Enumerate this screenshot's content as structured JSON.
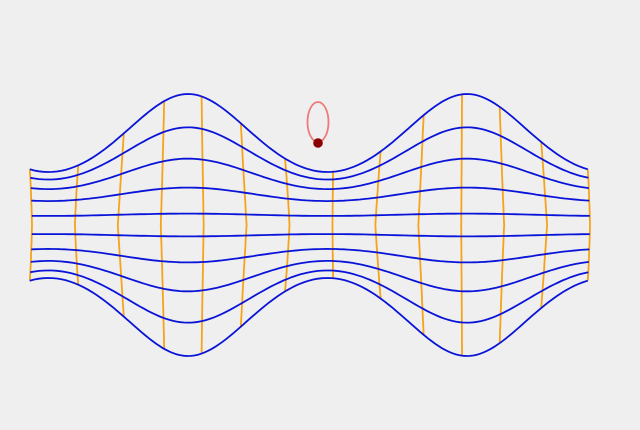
{
  "figure": {
    "background": "#efefef",
    "warped_grid": {
      "horizontal_line_color": "#0a14d8",
      "vertical_line_color": "#f5a31a",
      "horizontal_line_count": 10,
      "vertical_line_count": 14,
      "wave_crests": 2
    },
    "particle_marker": {
      "color": "#8b0000",
      "label_icon": "particle-dot-icon"
    },
    "orbit_loop": {
      "color": "#ee7a7a"
    }
  }
}
